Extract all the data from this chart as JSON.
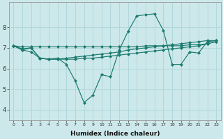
{
  "xlabel": "Humidex (Indice chaleur)",
  "xlim": [
    -0.5,
    23.5
  ],
  "ylim": [
    3.5,
    9.2
  ],
  "yticks": [
    4,
    5,
    6,
    7,
    8
  ],
  "xticks": [
    0,
    1,
    2,
    3,
    4,
    5,
    6,
    7,
    8,
    9,
    10,
    11,
    12,
    13,
    14,
    15,
    16,
    17,
    18,
    19,
    20,
    21,
    22,
    23
  ],
  "bg_color": "#cde8ea",
  "grid_color": "#b0d8dc",
  "line_color": "#1a7a6e",
  "lines": [
    [
      7.1,
      7.05,
      7.05,
      7.05,
      7.05,
      7.05,
      7.05,
      7.05,
      7.05,
      7.05,
      7.05,
      7.05,
      7.05,
      7.05,
      7.05,
      7.1,
      7.1,
      7.1,
      7.1,
      7.1,
      7.15,
      7.15,
      7.2,
      7.3
    ],
    [
      7.1,
      6.95,
      7.0,
      6.5,
      6.45,
      6.5,
      6.2,
      5.4,
      4.35,
      4.7,
      5.7,
      5.6,
      6.9,
      7.8,
      8.55,
      8.6,
      8.65,
      7.85,
      6.2,
      6.2,
      6.8,
      6.75,
      7.3,
      7.35
    ],
    [
      7.1,
      6.9,
      6.8,
      6.5,
      6.45,
      6.45,
      6.45,
      6.45,
      6.5,
      6.5,
      6.55,
      6.6,
      6.65,
      6.7,
      6.75,
      6.8,
      6.85,
      6.9,
      6.95,
      7.0,
      7.05,
      7.1,
      7.2,
      7.3
    ],
    [
      7.1,
      6.9,
      7.0,
      6.5,
      6.45,
      6.45,
      6.5,
      6.55,
      6.6,
      6.65,
      6.7,
      6.75,
      6.8,
      6.9,
      6.95,
      7.0,
      7.05,
      7.1,
      7.15,
      7.2,
      7.25,
      7.3,
      7.35,
      7.35
    ]
  ],
  "xlabel_fontsize": 6.5,
  "tick_fontsize_x": 4.5,
  "tick_fontsize_y": 6.0
}
